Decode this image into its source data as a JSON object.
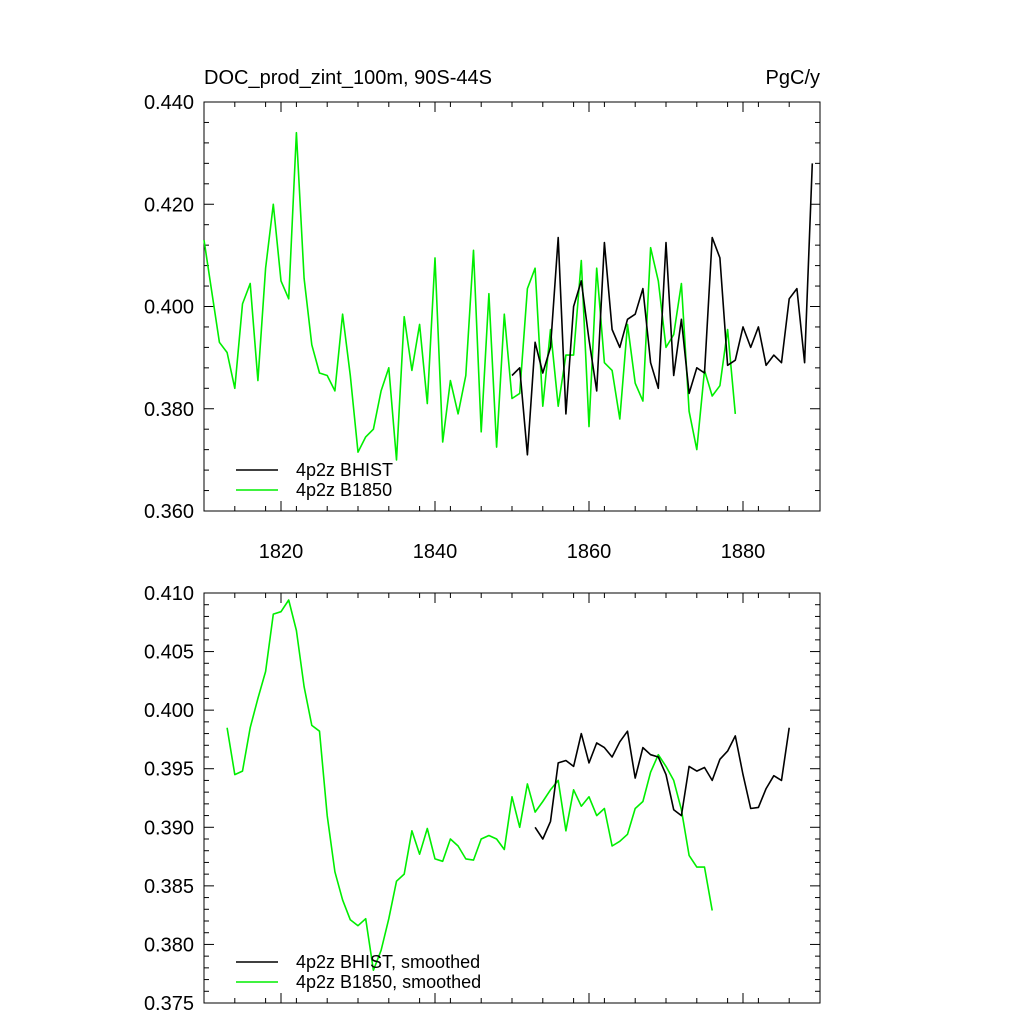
{
  "chart_data": [
    {
      "type": "line",
      "title_left": "DOC_prod_zint_100m, 90S-44S",
      "title_right": "PgC/y",
      "xlim": [
        1810,
        1890
      ],
      "ylim": [
        0.36,
        0.44
      ],
      "yticks": [
        0.36,
        0.38,
        0.4,
        0.42,
        0.44
      ],
      "ytick_labels": [
        "0.360",
        "0.380",
        "0.400",
        "0.420",
        "0.440"
      ],
      "xticks": [
        1820,
        1840,
        1860,
        1880
      ],
      "xtick_labels": [
        "1820",
        "1840",
        "1860",
        "1880"
      ],
      "legend_position": "bottom-left",
      "series": [
        {
          "name": "4p2z BHIST",
          "color": "#000000",
          "x": [
            1850,
            1851,
            1852,
            1853,
            1854,
            1855,
            1856,
            1857,
            1858,
            1859,
            1860,
            1861,
            1862,
            1863,
            1864,
            1865,
            1866,
            1867,
            1868,
            1869,
            1870,
            1871,
            1872,
            1873,
            1874,
            1875,
            1876,
            1877,
            1878,
            1879,
            1880,
            1881,
            1882,
            1883,
            1884,
            1885,
            1886,
            1887,
            1888,
            1889
          ],
          "values": [
            0.3865,
            0.388,
            0.371,
            0.393,
            0.387,
            0.392,
            0.4135,
            0.379,
            0.4,
            0.405,
            0.3935,
            0.3835,
            0.4125,
            0.3955,
            0.392,
            0.3975,
            0.3985,
            0.4035,
            0.389,
            0.384,
            0.4125,
            0.3865,
            0.3975,
            0.383,
            0.388,
            0.387,
            0.4135,
            0.4095,
            0.3885,
            0.3895,
            0.396,
            0.392,
            0.396,
            0.3885,
            0.3905,
            0.389,
            0.4015,
            0.4035,
            0.389,
            0.428
          ]
        },
        {
          "name": "4p2z B1850",
          "color": "#00ee00",
          "x": [
            1810,
            1811,
            1812,
            1813,
            1814,
            1815,
            1816,
            1817,
            1818,
            1819,
            1820,
            1821,
            1822,
            1823,
            1824,
            1825,
            1826,
            1827,
            1828,
            1829,
            1830,
            1831,
            1832,
            1833,
            1834,
            1835,
            1836,
            1837,
            1838,
            1839,
            1840,
            1841,
            1842,
            1843,
            1844,
            1845,
            1846,
            1847,
            1848,
            1849,
            1850,
            1851,
            1852,
            1853,
            1854,
            1855,
            1856,
            1857,
            1858,
            1859,
            1860,
            1861,
            1862,
            1863,
            1864,
            1865,
            1866,
            1867,
            1868,
            1869,
            1870,
            1871,
            1872,
            1873,
            1874,
            1875,
            1876,
            1877,
            1878,
            1879
          ],
          "values": [
            0.413,
            0.403,
            0.393,
            0.391,
            0.384,
            0.4005,
            0.4045,
            0.3855,
            0.4075,
            0.42,
            0.405,
            0.4015,
            0.434,
            0.4055,
            0.3925,
            0.387,
            0.3865,
            0.3835,
            0.3985,
            0.3865,
            0.3715,
            0.3745,
            0.376,
            0.3835,
            0.388,
            0.37,
            0.398,
            0.3875,
            0.3965,
            0.381,
            0.4095,
            0.3735,
            0.3855,
            0.379,
            0.3865,
            0.411,
            0.3755,
            0.4025,
            0.3725,
            0.3985,
            0.382,
            0.383,
            0.4035,
            0.4075,
            0.3805,
            0.3955,
            0.3805,
            0.3905,
            0.3905,
            0.409,
            0.3765,
            0.4075,
            0.389,
            0.3875,
            0.378,
            0.3965,
            0.385,
            0.3815,
            0.4115,
            0.405,
            0.392,
            0.3945,
            0.4045,
            0.3795,
            0.372,
            0.3875,
            0.3825,
            0.3845,
            0.3955,
            0.379
          ]
        }
      ]
    },
    {
      "type": "line",
      "xlim": [
        1810,
        1890
      ],
      "ylim": [
        0.375,
        0.41
      ],
      "yticks": [
        0.375,
        0.38,
        0.385,
        0.39,
        0.395,
        0.4,
        0.405,
        0.41
      ],
      "ytick_labels": [
        "0.375",
        "0.380",
        "0.385",
        "0.390",
        "0.395",
        "0.400",
        "0.405",
        "0.410"
      ],
      "xticks": [
        1820,
        1840,
        1860,
        1880
      ],
      "legend_position": "bottom-left",
      "series": [
        {
          "name": "4p2z BHIST, smoothed",
          "color": "#000000",
          "x": [
            1853,
            1854,
            1855,
            1856,
            1857,
            1858,
            1859,
            1860,
            1861,
            1862,
            1863,
            1864,
            1865,
            1866,
            1867,
            1868,
            1869,
            1870,
            1871,
            1872,
            1873,
            1874,
            1875,
            1876,
            1877,
            1878,
            1879,
            1880,
            1881,
            1882,
            1883,
            1884,
            1885,
            1886
          ],
          "values": [
            0.39,
            0.389,
            0.3905,
            0.3955,
            0.3957,
            0.3952,
            0.398,
            0.3955,
            0.3972,
            0.3968,
            0.396,
            0.3973,
            0.3982,
            0.3942,
            0.3968,
            0.3962,
            0.396,
            0.3945,
            0.3915,
            0.391,
            0.3952,
            0.3948,
            0.3951,
            0.394,
            0.3958,
            0.3965,
            0.3978,
            0.3945,
            0.3916,
            0.3917,
            0.3933,
            0.3944,
            0.394,
            0.3985
          ]
        },
        {
          "name": "4p2z B1850, smoothed",
          "color": "#00ee00",
          "x": [
            1813,
            1814,
            1815,
            1816,
            1817,
            1818,
            1819,
            1820,
            1821,
            1822,
            1823,
            1824,
            1825,
            1826,
            1827,
            1828,
            1829,
            1830,
            1831,
            1832,
            1833,
            1834,
            1835,
            1836,
            1837,
            1838,
            1839,
            1840,
            1841,
            1842,
            1843,
            1844,
            1845,
            1846,
            1847,
            1848,
            1849,
            1850,
            1851,
            1852,
            1853,
            1854,
            1855,
            1856,
            1857,
            1858,
            1859,
            1860,
            1861,
            1862,
            1863,
            1864,
            1865,
            1866,
            1867,
            1868,
            1869,
            1870,
            1871,
            1872,
            1873,
            1874,
            1875,
            1876
          ],
          "values": [
            0.3985,
            0.3945,
            0.3948,
            0.3985,
            0.401,
            0.4033,
            0.4082,
            0.4084,
            0.4094,
            0.4068,
            0.402,
            0.3987,
            0.3982,
            0.391,
            0.3862,
            0.3838,
            0.3821,
            0.3816,
            0.3822,
            0.3778,
            0.3795,
            0.3822,
            0.3854,
            0.386,
            0.3897,
            0.3877,
            0.3899,
            0.3873,
            0.3871,
            0.389,
            0.3884,
            0.3873,
            0.3872,
            0.389,
            0.3893,
            0.389,
            0.3881,
            0.3926,
            0.39,
            0.3937,
            0.3913,
            0.3922,
            0.3932,
            0.394,
            0.3897,
            0.3932,
            0.3918,
            0.3926,
            0.391,
            0.3916,
            0.3884,
            0.3888,
            0.3894,
            0.3916,
            0.3922,
            0.3947,
            0.3962,
            0.3952,
            0.394,
            0.3915,
            0.3876,
            0.3866,
            0.3866,
            0.3829
          ]
        }
      ]
    }
  ]
}
